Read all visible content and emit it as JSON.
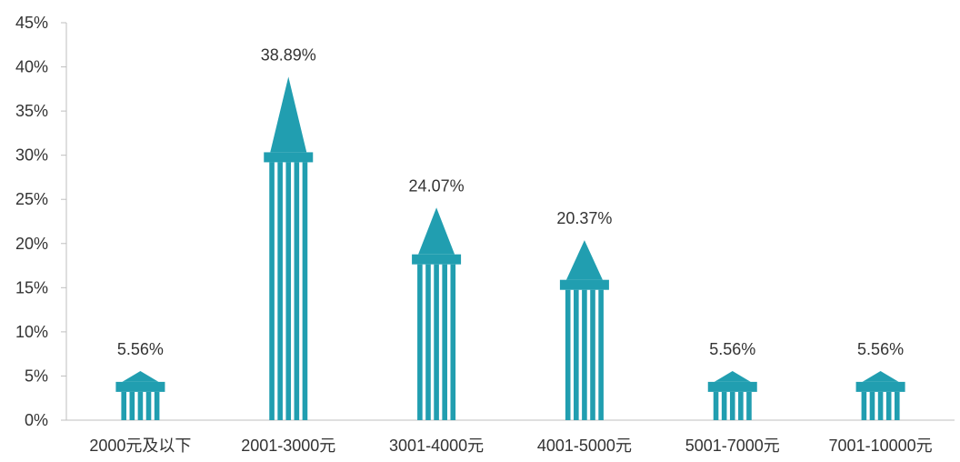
{
  "colors": {
    "bar": "#219EB0",
    "axis": "#BFBFBF",
    "text": "#333333"
  },
  "chart_data": {
    "type": "bar",
    "title": "",
    "xlabel": "",
    "ylabel": "",
    "categories": [
      "2000元及以下",
      "2001-3000元",
      "3001-4000元",
      "4001-5000元",
      "5001-7000元",
      "7001-10000元"
    ],
    "values": [
      5.56,
      38.89,
      24.07,
      20.37,
      5.56,
      5.56
    ],
    "data_labels": [
      "5.56%",
      "38.89%",
      "24.07%",
      "20.37%",
      "5.56%",
      "5.56%"
    ],
    "ylim": [
      0,
      45
    ],
    "y_ticks": [
      0,
      5,
      10,
      15,
      20,
      25,
      30,
      35,
      40,
      45
    ],
    "y_tick_labels": [
      "0%",
      "5%",
      "10%",
      "15%",
      "20%",
      "25%",
      "30%",
      "35%",
      "40%",
      "45%"
    ],
    "grid": false,
    "legend": "none",
    "bar_style": "striped column with cornice and triangular roof"
  }
}
